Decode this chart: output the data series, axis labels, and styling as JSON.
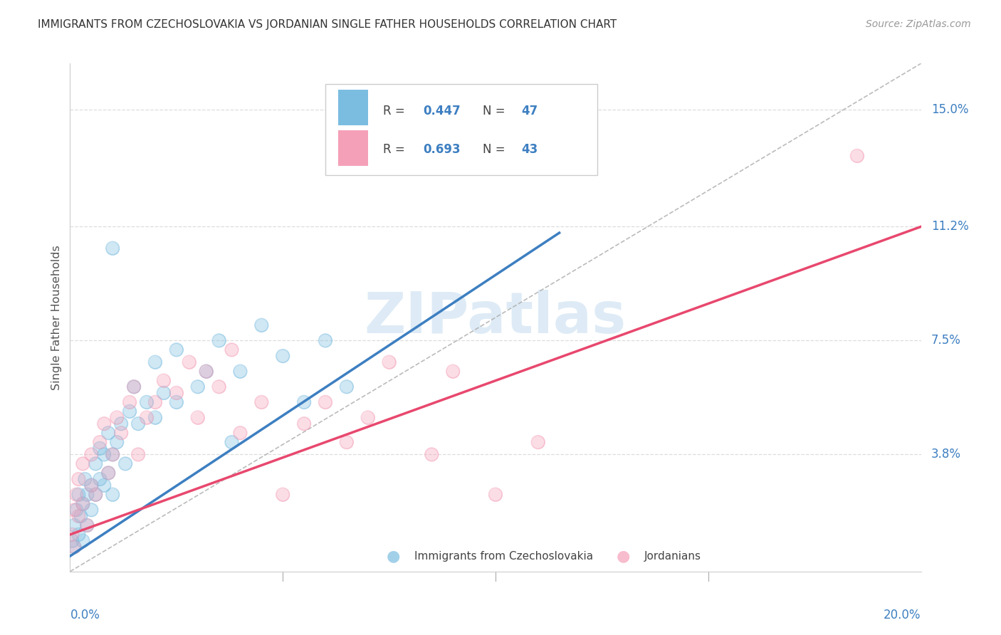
{
  "title": "IMMIGRANTS FROM CZECHOSLOVAKIA VS JORDANIAN SINGLE FATHER HOUSEHOLDS CORRELATION CHART",
  "source": "Source: ZipAtlas.com",
  "ylabel": "Single Father Households",
  "ytick_labels": [
    "15.0%",
    "11.2%",
    "7.5%",
    "3.8%"
  ],
  "ytick_values": [
    0.15,
    0.112,
    0.075,
    0.038
  ],
  "xlim": [
    0.0,
    0.2
  ],
  "ylim": [
    0.0,
    0.165
  ],
  "blue_color": "#7bbde0",
  "blue_line_color": "#3d7fc1",
  "pink_color": "#f4a0b8",
  "pink_line_color": "#e8486e",
  "legend_r_blue": "0.447",
  "legend_n_blue": "47",
  "legend_r_pink": "0.693",
  "legend_n_pink": "43",
  "blue_scatter_x": [
    0.0005,
    0.001,
    0.001,
    0.0015,
    0.002,
    0.002,
    0.0025,
    0.003,
    0.003,
    0.0035,
    0.004,
    0.004,
    0.005,
    0.005,
    0.006,
    0.006,
    0.007,
    0.007,
    0.008,
    0.008,
    0.009,
    0.009,
    0.01,
    0.01,
    0.011,
    0.012,
    0.013,
    0.014,
    0.015,
    0.016,
    0.018,
    0.02,
    0.02,
    0.022,
    0.025,
    0.025,
    0.03,
    0.032,
    0.035,
    0.038,
    0.04,
    0.045,
    0.05,
    0.055,
    0.06,
    0.065,
    0.01
  ],
  "blue_scatter_y": [
    0.01,
    0.015,
    0.008,
    0.02,
    0.012,
    0.025,
    0.018,
    0.022,
    0.01,
    0.03,
    0.025,
    0.015,
    0.028,
    0.02,
    0.035,
    0.025,
    0.03,
    0.04,
    0.038,
    0.028,
    0.032,
    0.045,
    0.038,
    0.025,
    0.042,
    0.048,
    0.035,
    0.052,
    0.06,
    0.048,
    0.055,
    0.05,
    0.068,
    0.058,
    0.055,
    0.072,
    0.06,
    0.065,
    0.075,
    0.042,
    0.065,
    0.08,
    0.07,
    0.055,
    0.075,
    0.06,
    0.105
  ],
  "pink_scatter_x": [
    0.0005,
    0.001,
    0.001,
    0.0015,
    0.002,
    0.002,
    0.003,
    0.003,
    0.004,
    0.005,
    0.005,
    0.006,
    0.007,
    0.008,
    0.009,
    0.01,
    0.011,
    0.012,
    0.014,
    0.015,
    0.016,
    0.018,
    0.02,
    0.022,
    0.025,
    0.028,
    0.03,
    0.032,
    0.035,
    0.038,
    0.04,
    0.045,
    0.05,
    0.055,
    0.06,
    0.065,
    0.07,
    0.075,
    0.085,
    0.09,
    0.1,
    0.11,
    0.185
  ],
  "pink_scatter_y": [
    0.012,
    0.02,
    0.008,
    0.025,
    0.018,
    0.03,
    0.022,
    0.035,
    0.015,
    0.028,
    0.038,
    0.025,
    0.042,
    0.048,
    0.032,
    0.038,
    0.05,
    0.045,
    0.055,
    0.06,
    0.038,
    0.05,
    0.055,
    0.062,
    0.058,
    0.068,
    0.05,
    0.065,
    0.06,
    0.072,
    0.045,
    0.055,
    0.025,
    0.048,
    0.055,
    0.042,
    0.05,
    0.068,
    0.038,
    0.065,
    0.025,
    0.042,
    0.135
  ],
  "blue_line_x": [
    0.0,
    0.115
  ],
  "blue_line_y": [
    0.005,
    0.11
  ],
  "pink_line_x": [
    0.0,
    0.2
  ],
  "pink_line_y": [
    0.012,
    0.112
  ],
  "diag_line_x": [
    0.0,
    0.2
  ],
  "diag_line_y": [
    0.0,
    0.165
  ],
  "grid_color": "#dddddd",
  "background_color": "#ffffff",
  "watermark_color": "#c8dff0"
}
